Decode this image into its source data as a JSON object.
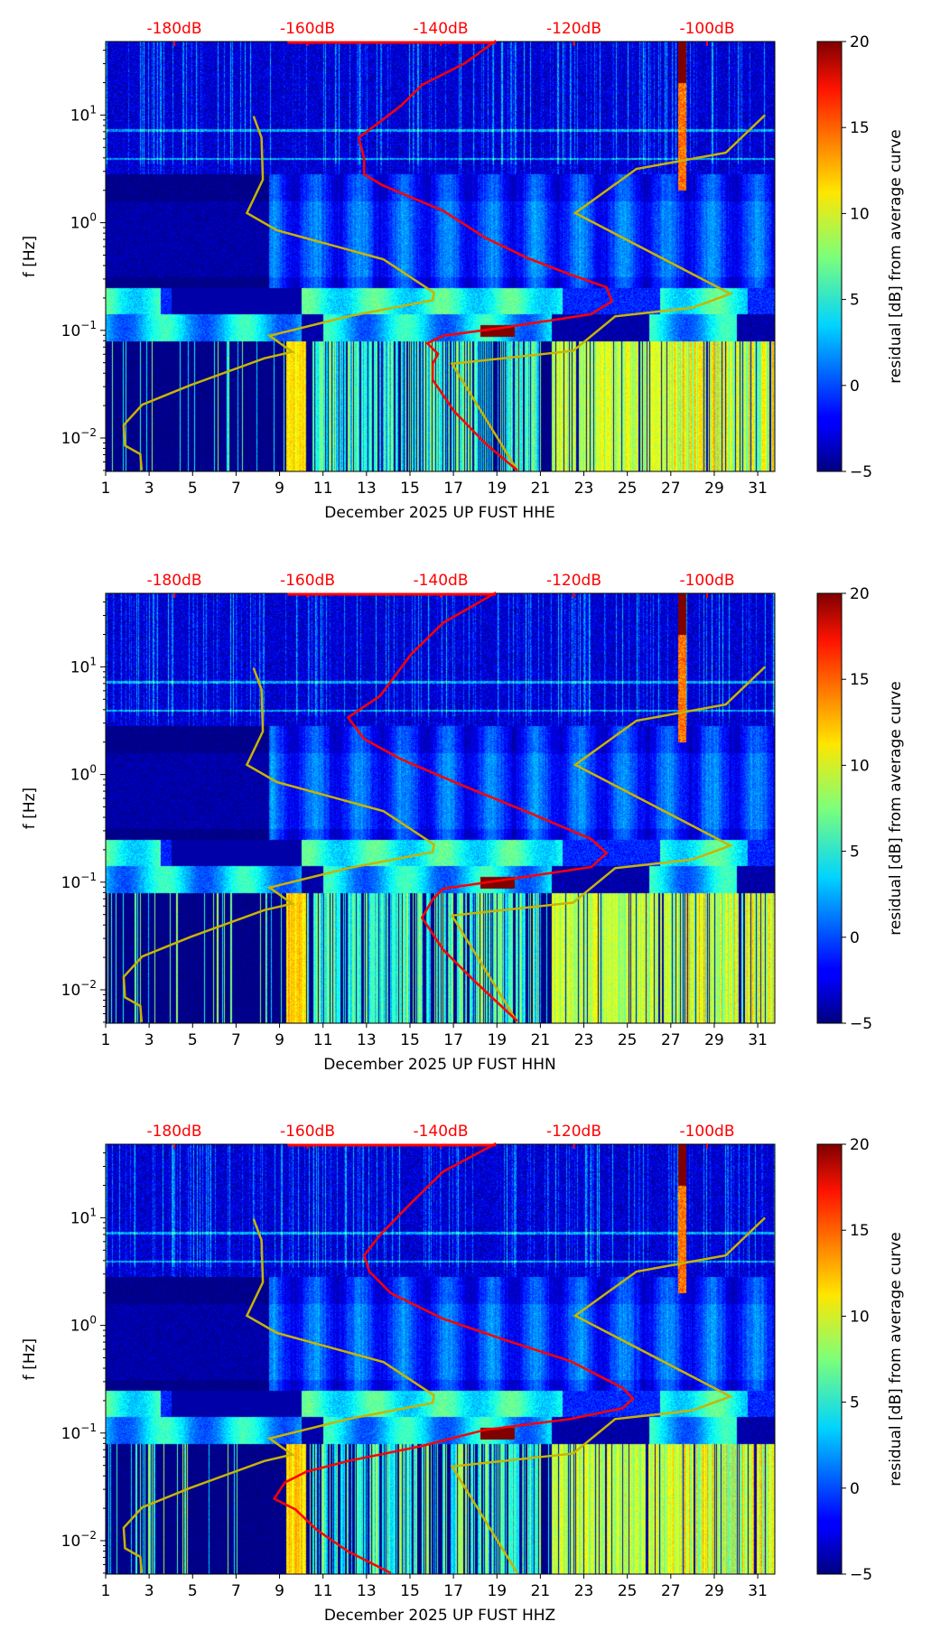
{
  "chart_data": [
    {
      "type": "heatmap",
      "title": "",
      "xlabel": "December 2025 UP FUST  HHE",
      "ylabel": "f [Hz]",
      "colorbar_label": "residual [dB] from average curve",
      "xlim": [
        1,
        31.8
      ],
      "ylim_hz": [
        0.005,
        48
      ],
      "xticks": [
        "1",
        "3",
        "5",
        "7",
        "9",
        "11",
        "13",
        "15",
        "17",
        "19",
        "21",
        "23",
        "25",
        "27",
        "29",
        "31"
      ],
      "yticks": [
        {
          "exp": "1",
          "log": 1
        },
        {
          "exp": "0",
          "log": 0
        },
        {
          "exp": "−1",
          "log": -1
        },
        {
          "exp": "−2",
          "log": -2
        }
      ],
      "top_axis_ticks": [
        {
          "label": "-180dB",
          "db": -180
        },
        {
          "label": "-160dB",
          "db": -160
        },
        {
          "label": "-140dB",
          "db": -140
        },
        {
          "label": "-120dB",
          "db": -120
        },
        {
          "label": "-100dB",
          "db": -100
        }
      ],
      "colorbar_range": [
        -5,
        20
      ],
      "colorbar_ticks": [
        "20",
        "15",
        "10",
        "5",
        "0",
        "−5"
      ],
      "psd_curve": {
        "color": "#ff0000",
        "db": [
          -131.7,
          -136.4,
          -142.8,
          -145.9,
          -148.0,
          -152.3,
          -151.5,
          -151.5,
          -148.8,
          -139.6,
          -133.3,
          -126.9,
          -120.6,
          -115.1,
          -114.3,
          -117.4,
          -130.1,
          -139.6,
          -142.0,
          -140.4,
          -141.2,
          -141.2,
          -138.0,
          -133.3,
          -128.5
        ],
        "log_freq": [
          1.69,
          1.48,
          1.28,
          1.09,
          0.99,
          0.79,
          0.6,
          0.45,
          0.35,
          0.11,
          -0.14,
          -0.33,
          -0.48,
          -0.6,
          -0.73,
          -0.85,
          -0.97,
          -1.05,
          -1.12,
          -1.22,
          -1.31,
          -1.46,
          -1.75,
          -2.05,
          -2.3
        ]
      }
    },
    {
      "type": "heatmap",
      "title": "",
      "xlabel": "December 2025 UP FUST  HHN",
      "ylabel": "f [Hz]",
      "colorbar_label": "residual [dB] from average curve",
      "xlim": [
        1,
        31.8
      ],
      "ylim_hz": [
        0.005,
        48
      ],
      "xticks": [
        "1",
        "3",
        "5",
        "7",
        "9",
        "11",
        "13",
        "15",
        "17",
        "19",
        "21",
        "23",
        "25",
        "27",
        "29",
        "31"
      ],
      "yticks": [
        {
          "exp": "1",
          "log": 1
        },
        {
          "exp": "0",
          "log": 0
        },
        {
          "exp": "−1",
          "log": -1
        },
        {
          "exp": "−2",
          "log": -2
        }
      ],
      "top_axis_ticks": [
        {
          "label": "-180dB",
          "db": -180
        },
        {
          "label": "-160dB",
          "db": -160
        },
        {
          "label": "-140dB",
          "db": -140
        },
        {
          "label": "-120dB",
          "db": -120
        },
        {
          "label": "-100dB",
          "db": -100
        }
      ],
      "colorbar_range": [
        -5,
        20
      ],
      "colorbar_ticks": [
        "20",
        "15",
        "10",
        "5",
        "0",
        "−5"
      ],
      "psd_curve": {
        "color": "#ff0000",
        "db": [
          -131.7,
          -139.6,
          -144.4,
          -149.1,
          -153.9,
          -151.5,
          -145.9,
          -136.4,
          -126.9,
          -117.4,
          -115.1,
          -117.4,
          -131.7,
          -139.6,
          -141.2,
          -142.8,
          -139.6,
          -134.9,
          -128.5
        ],
        "log_freq": [
          1.69,
          1.41,
          1.12,
          0.73,
          0.53,
          0.33,
          0.14,
          -0.11,
          -0.35,
          -0.6,
          -0.73,
          -0.86,
          -0.99,
          -1.06,
          -1.16,
          -1.33,
          -1.63,
          -1.92,
          -2.29
        ]
      }
    },
    {
      "type": "heatmap",
      "title": "",
      "xlabel": "December 2025 UP FUST  HHZ",
      "ylabel": "f [Hz]",
      "colorbar_label": "residual [dB] from average curve",
      "xlim": [
        1,
        31.8
      ],
      "ylim_hz": [
        0.005,
        48
      ],
      "xticks": [
        "1",
        "3",
        "5",
        "7",
        "9",
        "11",
        "13",
        "15",
        "17",
        "19",
        "21",
        "23",
        "25",
        "27",
        "29",
        "31"
      ],
      "yticks": [
        {
          "exp": "1",
          "log": 1
        },
        {
          "exp": "0",
          "log": 0
        },
        {
          "exp": "−1",
          "log": -1
        },
        {
          "exp": "−2",
          "log": -2
        }
      ],
      "top_axis_ticks": [
        {
          "label": "-180dB",
          "db": -180
        },
        {
          "label": "-160dB",
          "db": -160
        },
        {
          "label": "-140dB",
          "db": -140
        },
        {
          "label": "-120dB",
          "db": -120
        },
        {
          "label": "-100dB",
          "db": -100
        }
      ],
      "colorbar_range": [
        -5,
        20
      ],
      "colorbar_ticks": [
        "20",
        "15",
        "10",
        "5",
        "0",
        "−5"
      ],
      "psd_curve": {
        "color": "#ff0000",
        "db": [
          -131.7,
          -139.6,
          -144.4,
          -149.1,
          -151.5,
          -150.7,
          -147.5,
          -139.6,
          -130.1,
          -120.6,
          -112.7,
          -111.1,
          -112.7,
          -120.6,
          -133.3,
          -142.8,
          -153.9,
          -160.2,
          -163.4,
          -165.0,
          -161.8,
          -158.6,
          -153.9,
          -147.5
        ],
        "log_freq": [
          1.69,
          1.43,
          1.14,
          0.84,
          0.65,
          0.5,
          0.3,
          0.06,
          -0.14,
          -0.33,
          -0.58,
          -0.68,
          -0.77,
          -0.87,
          -0.97,
          -1.12,
          -1.26,
          -1.36,
          -1.46,
          -1.61,
          -1.71,
          -1.9,
          -2.1,
          -2.3
        ]
      }
    }
  ],
  "noise_models": {
    "color": "#c8b400",
    "low": {
      "db": [
        -168.1,
        -166.9,
        -166.7,
        -169.1,
        -164.6,
        -148.6,
        -141.0,
        -141.2,
        -153.9,
        -165.7,
        -162.3,
        -166.5,
        -177.6,
        -184.8,
        -187.6,
        -187.4,
        -185.1,
        -184.9
      ],
      "log_freq": [
        0.99,
        0.79,
        0.4,
        0.09,
        -0.07,
        -0.34,
        -0.65,
        -0.72,
        -0.87,
        -1.05,
        -1.2,
        -1.26,
        -1.51,
        -1.69,
        -1.88,
        -2.07,
        -2.15,
        -2.3
      ]
    },
    "high": {
      "db": [
        -91.3,
        -97.2,
        -110.6,
        -119.8,
        -96.5,
        -102.2,
        -113.8,
        -120.1,
        -138.3,
        -128.5
      ],
      "log_freq": [
        1.0,
        0.65,
        0.5,
        0.09,
        -0.66,
        -0.79,
        -0.87,
        -1.19,
        -1.31,
        -2.3
      ]
    }
  }
}
